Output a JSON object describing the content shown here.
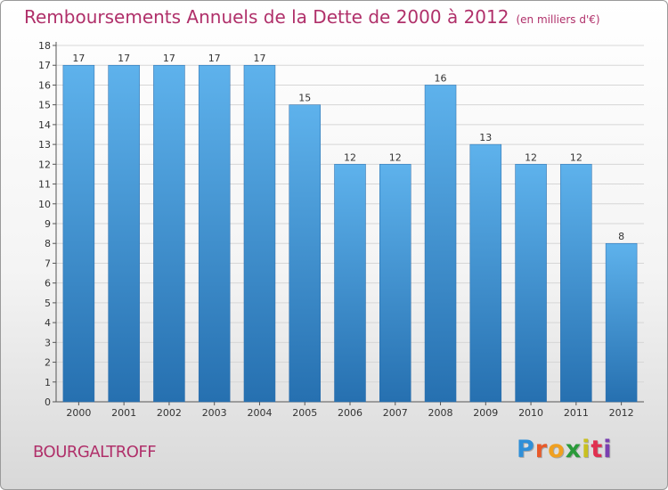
{
  "title": "Remboursements Annuels de la Dette de 2000 à 2012",
  "subtitle": "(en milliers d'€)",
  "commune": "BOURGALTROFF",
  "logo": {
    "letters": [
      "P",
      "r",
      "o",
      "x",
      "i",
      "t",
      "i"
    ],
    "colors": [
      "#2f8fd8",
      "#e85a2a",
      "#f0a020",
      "#2a9a3a",
      "#c8c020",
      "#e03050",
      "#7a40b0"
    ]
  },
  "chart_data": {
    "type": "bar",
    "categories": [
      "2000",
      "2001",
      "2002",
      "2003",
      "2004",
      "2005",
      "2006",
      "2007",
      "2008",
      "2009",
      "2010",
      "2011",
      "2012"
    ],
    "values": [
      17,
      17,
      17,
      17,
      17,
      15,
      12,
      12,
      16,
      13,
      12,
      12,
      8
    ],
    "yticks": [
      "0",
      "1",
      "2",
      "3",
      "4",
      "5",
      "6",
      "7",
      "8",
      "9",
      "10",
      "11",
      "12",
      "13",
      "14",
      "15",
      "16",
      "17",
      "18"
    ],
    "ylim": [
      0,
      18
    ],
    "grid": true,
    "bar_color": "#3d8fd4"
  }
}
